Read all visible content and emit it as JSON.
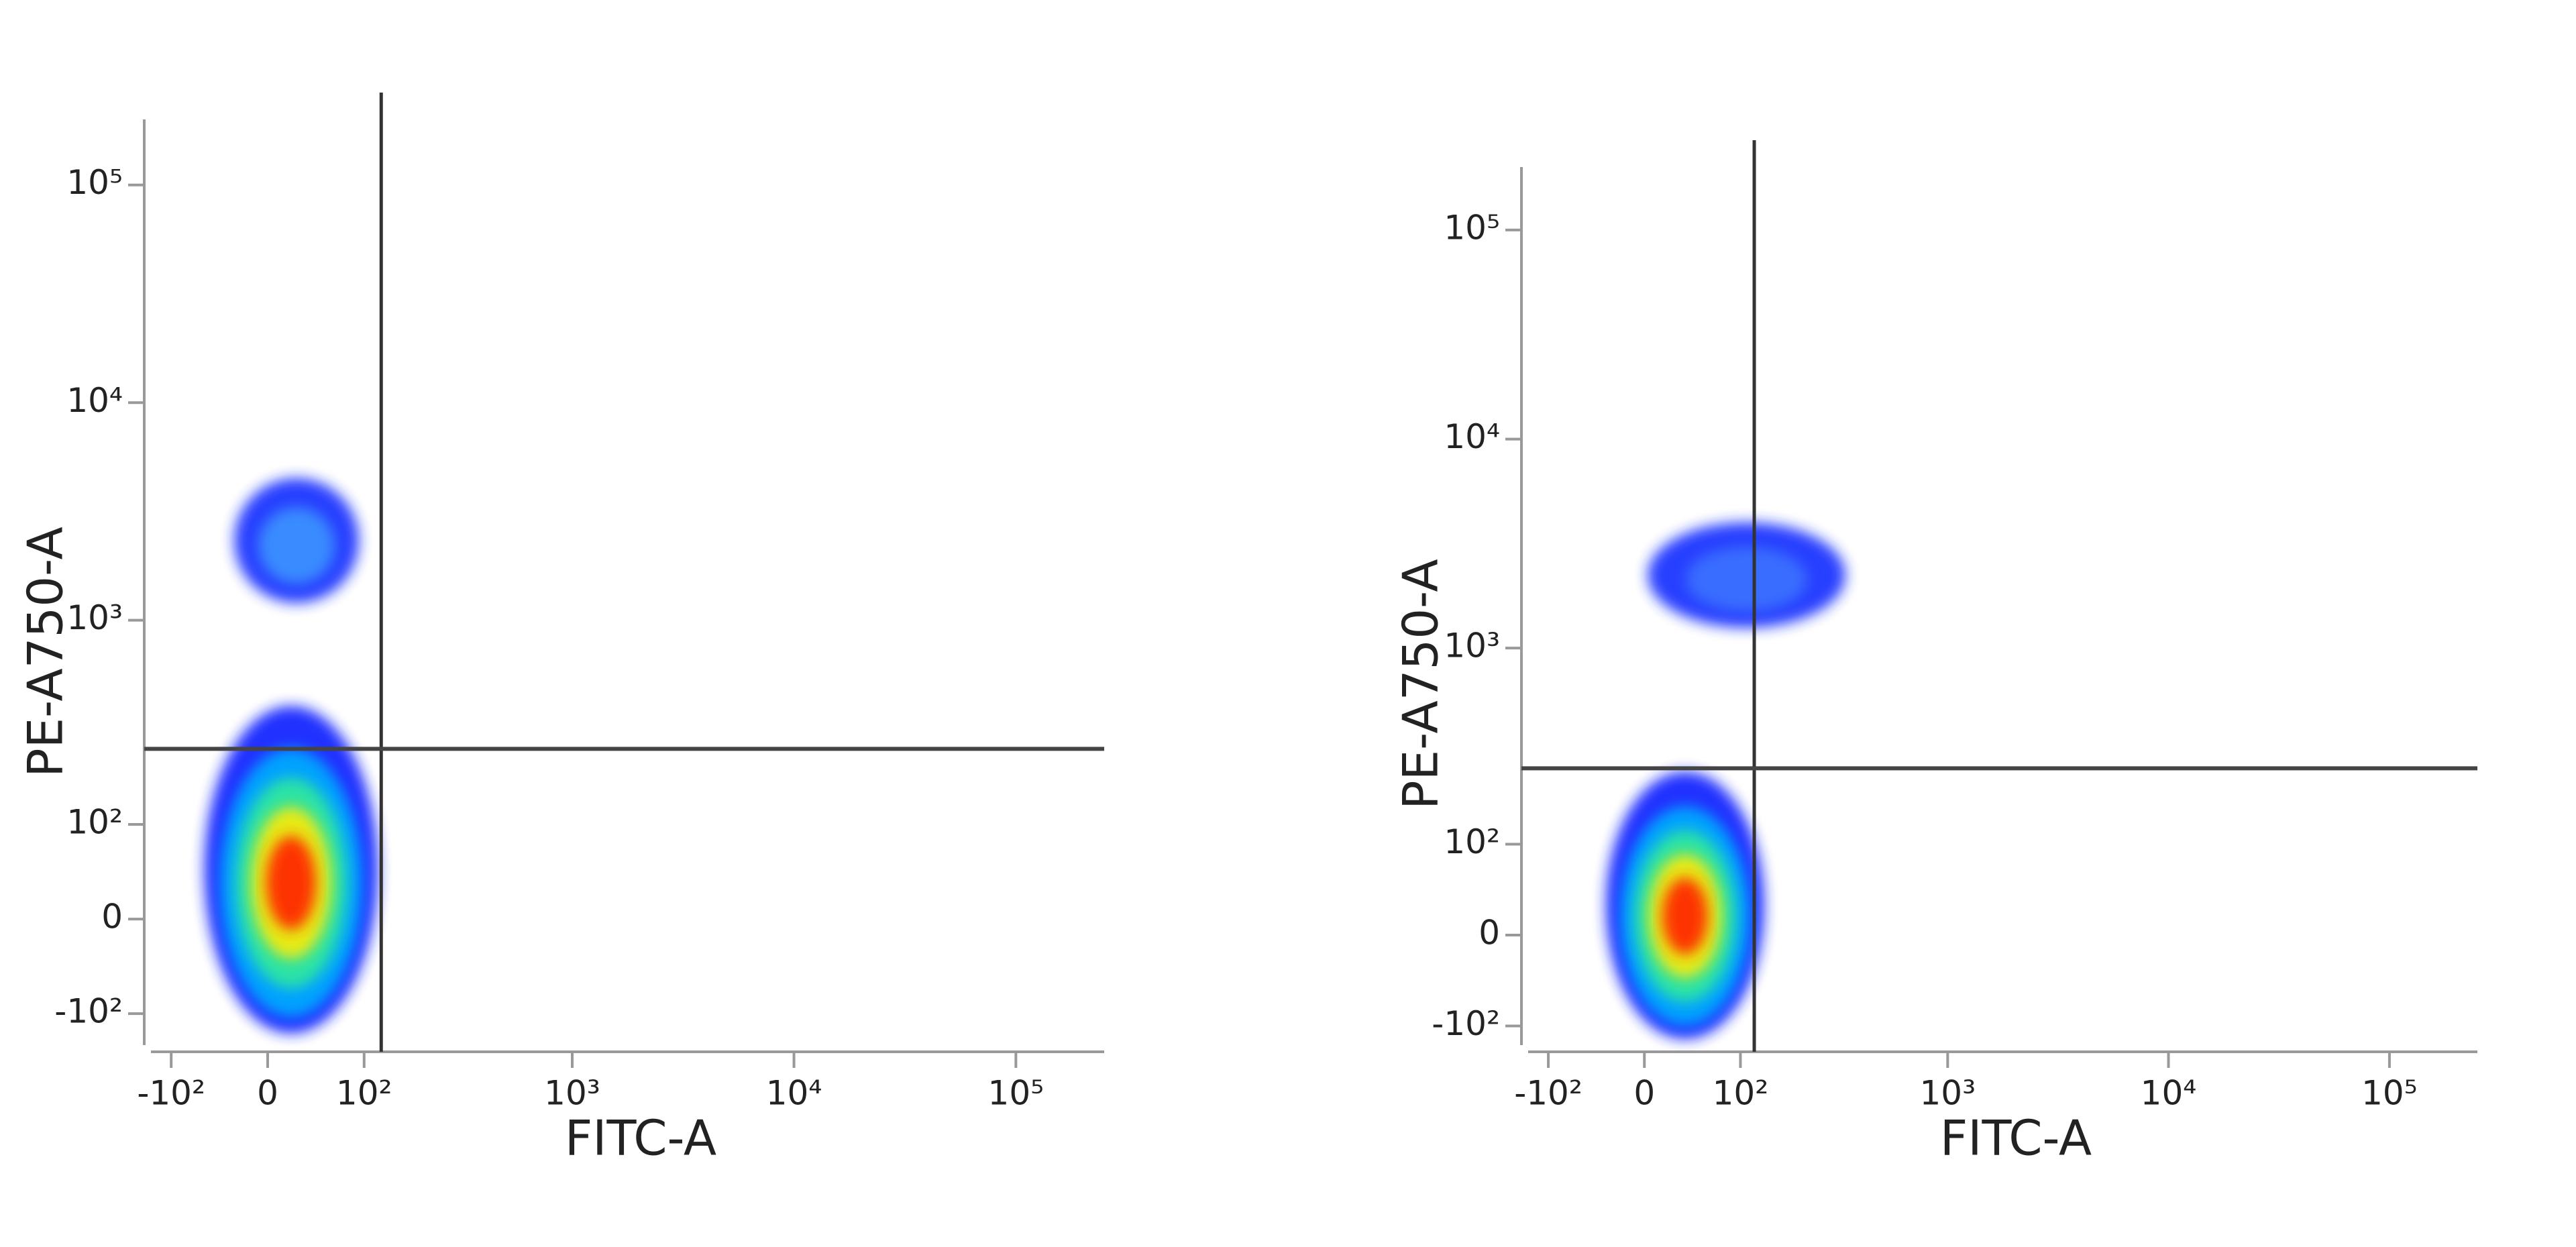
{
  "chart_data": [
    {
      "type": "density",
      "scale": "biexponential",
      "xlabel": "FITC-A",
      "ylabel": "PE-A750-A",
      "xlim": [
        -130,
        250000
      ],
      "ylim": [
        -150,
        200000
      ],
      "xticks": [
        {
          "value": -100,
          "label": "-10²"
        },
        0,
        {
          "value": 100,
          "label": "10²"
        },
        {
          "value": 1000,
          "label": "10³"
        },
        {
          "value": 10000,
          "label": "10⁴"
        },
        {
          "value": 100000,
          "label": "10⁵"
        }
      ],
      "yticks": [
        {
          "value": -100,
          "label": "-10²"
        },
        0,
        {
          "value": 100,
          "label": "10²"
        },
        {
          "value": 1000,
          "label": "10³"
        },
        {
          "value": 10000,
          "label": "10⁴"
        },
        {
          "value": 100000,
          "label": "10⁵"
        }
      ],
      "gates": {
        "x": 125,
        "y": 250
      },
      "populations": [
        {
          "x": [
            -60,
            120
          ],
          "y": [
            -130,
            400
          ],
          "colors": [
            "#1626ff",
            "#00a8ff",
            "#2ee6a0",
            "#f2ea10",
            "#ff2a00"
          ]
        },
        {
          "x": [
            -30,
            93
          ],
          "y": [
            1200,
            4500
          ],
          "colors": [
            "#1a35ff",
            "#3a90ff"
          ]
        }
      ]
    },
    {
      "type": "density",
      "scale": "biexponential",
      "xlabel": "FITC-A",
      "ylabel": "PE-A750-A",
      "xlim": [
        -130,
        250000
      ],
      "ylim": [
        -130,
        200000
      ],
      "xticks": [
        {
          "value": -100,
          "label": "-10²"
        },
        0,
        {
          "value": 100,
          "label": "10²"
        },
        {
          "value": 1000,
          "label": "10³"
        },
        {
          "value": 10000,
          "label": "10⁴"
        },
        {
          "value": 100000,
          "label": "10⁵"
        }
      ],
      "yticks": [
        {
          "value": -100,
          "label": "-10²"
        },
        0,
        {
          "value": 100,
          "label": "10²"
        },
        {
          "value": 1000,
          "label": "10³"
        },
        {
          "value": 10000,
          "label": "10⁴"
        },
        {
          "value": 100000,
          "label": "10⁵"
        }
      ],
      "gates": {
        "x": 120,
        "y": 260
      },
      "populations": [
        {
          "x": [
            -35,
            136
          ],
          "y": [
            -120,
            250
          ],
          "colors": [
            "#1626ff",
            "#00a8ff",
            "#2ee6a0",
            "#f2ea10",
            "#ff2a00"
          ]
        },
        {
          "x": [
            3,
            340
          ],
          "y": [
            1250,
            4000
          ],
          "colors": [
            "#1a35ff",
            "#3a70ff"
          ]
        }
      ]
    }
  ]
}
